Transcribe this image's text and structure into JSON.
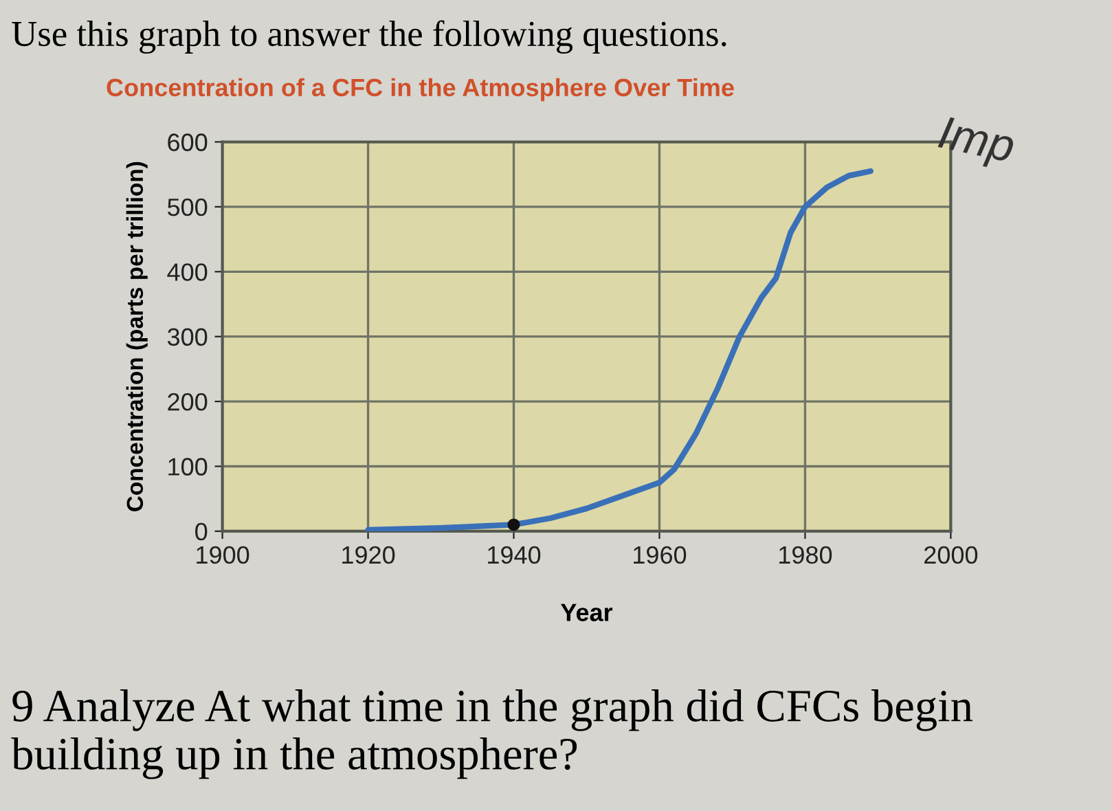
{
  "chart_data": {
    "type": "line",
    "title": "Concentration of a CFC in the Atmosphere Over Time",
    "xlabel": "Year",
    "ylabel": "Concentration (parts per trillion)",
    "annotations": [
      "Use this graph to answer the following questions.",
      "Imp",
      "9 Analyze At what time in the graph did CFCs begin building up in the atmosphere?"
    ],
    "series": [
      {
        "color": "#3a70b8",
        "x": [
          1920,
          1930,
          1940,
          1945,
          1950,
          1955,
          1960,
          1962,
          1965,
          1968,
          1971,
          1974,
          1976,
          1978,
          1980,
          1983,
          1986,
          1989
        ],
        "values": [
          2,
          5,
          10,
          20,
          35,
          55,
          75,
          95,
          150,
          220,
          300,
          360,
          390,
          460,
          500,
          530,
          548,
          555
        ]
      },
      {
        "type": "scatter",
        "color": "#111111",
        "x": [
          1940
        ],
        "values": [
          10
        ]
      }
    ],
    "xlim": [
      1900,
      2000
    ],
    "xticks": [
      1900,
      1920,
      1940,
      1960,
      1980,
      2000
    ],
    "ylim": [
      0,
      600
    ],
    "yticks": [
      0,
      100,
      200,
      300,
      400,
      500,
      600
    ],
    "grid": true
  }
}
